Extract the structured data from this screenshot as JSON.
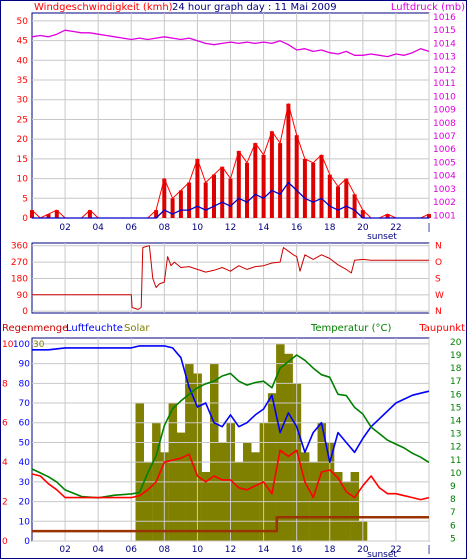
{
  "title": "24 hour graph day : 11 Mai 2009",
  "colors": {
    "wind": "#ff0000",
    "gust_bar": "#dd0000",
    "avg_wind": "#0000cc",
    "pressure": "#e000e0",
    "direction": "#cc0000",
    "humidity": "#0000ff",
    "temperature": "#008000",
    "dewpoint": "#ff0000",
    "solar": "#808000",
    "rain": "#993300",
    "grid": "#c8c8c8",
    "dark": "#000080"
  },
  "sunset_label": "sunset",
  "chart_data": [
    {
      "type": "line",
      "panel": "wind",
      "title": "24 hour graph day : 11 Mai 2009",
      "left_axis_label": "Windgeschwindigkeit (kmh)",
      "right_axis_label": "Luftdruck (mb)",
      "x_ticks": [
        "02",
        "04",
        "06",
        "08",
        "10",
        "12",
        "14",
        "16",
        "18",
        "20",
        "22",
        "|"
      ],
      "left_ticks": [
        0,
        5,
        10,
        15,
        20,
        25,
        30,
        35,
        40,
        45,
        50
      ],
      "right_ticks": [
        1001,
        1002,
        1003,
        1004,
        1005,
        1006,
        1007,
        1008,
        1009,
        1010,
        1011,
        1012,
        1013,
        1014,
        1015,
        1016
      ],
      "x_range": [
        0,
        24
      ],
      "ylim": [
        0,
        52
      ],
      "y2lim": [
        1000.8,
        1016.3
      ],
      "series": [
        {
          "name": "Luftdruck (mb)",
          "axis": "right",
          "color": "pressure",
          "x": [
            0,
            0.5,
            1,
            1.5,
            2,
            2.5,
            3,
            3.5,
            4,
            4.5,
            5,
            5.5,
            6,
            6.5,
            7,
            7.5,
            8,
            8.5,
            9,
            9.5,
            10,
            10.5,
            11,
            11.5,
            12,
            12.5,
            13,
            13.5,
            14,
            14.5,
            15,
            15.5,
            16,
            16.5,
            17,
            17.5,
            18,
            18.5,
            19,
            19.5,
            20,
            20.5,
            21,
            21.5,
            22,
            22.5,
            23,
            23.5,
            24
          ],
          "values": [
            1014.5,
            1014.6,
            1014.5,
            1014.7,
            1015.0,
            1014.9,
            1014.8,
            1014.8,
            1014.7,
            1014.6,
            1014.5,
            1014.4,
            1014.3,
            1014.4,
            1014.3,
            1014.4,
            1014.5,
            1014.4,
            1014.3,
            1014.4,
            1014.2,
            1014.0,
            1013.9,
            1014.0,
            1014.1,
            1014.0,
            1014.1,
            1014.0,
            1014.1,
            1014.0,
            1014.2,
            1013.9,
            1013.5,
            1013.6,
            1013.4,
            1013.5,
            1013.3,
            1013.2,
            1013.4,
            1013.1,
            1013.1,
            1013.2,
            1013.1,
            1013.0,
            1013.2,
            1013.1,
            1013.3,
            1013.6,
            1013.4
          ]
        },
        {
          "name": "Windgeschwindigkeit (kmh)",
          "axis": "left",
          "color": "wind",
          "x": [
            0,
            0.5,
            1,
            1.5,
            2,
            2.5,
            3,
            3.5,
            4,
            4.5,
            5,
            5.5,
            6,
            6.5,
            7,
            7.5,
            8,
            8.5,
            9,
            9.5,
            10,
            10.5,
            11,
            11.5,
            12,
            12.5,
            13,
            13.5,
            14,
            14.5,
            15,
            15.5,
            16,
            16.5,
            17,
            17.5,
            18,
            18.5,
            19,
            19.5,
            20,
            20.5,
            21,
            21.5,
            22,
            22.5,
            23,
            23.5,
            24
          ],
          "values": [
            2,
            0,
            1,
            2,
            0,
            0,
            0,
            2,
            0,
            0,
            0,
            0,
            0,
            0,
            0,
            2,
            10,
            5,
            7,
            9,
            15,
            9,
            11,
            13,
            10,
            17,
            14,
            19,
            16,
            22,
            19,
            29,
            21,
            15,
            14,
            16,
            11,
            8,
            10,
            6,
            2,
            0,
            0,
            1,
            0,
            0,
            0,
            0,
            1
          ]
        },
        {
          "name": "Mittelwind",
          "axis": "left",
          "color": "avg_wind",
          "x": [
            0,
            0.5,
            1,
            1.5,
            2,
            2.5,
            3,
            3.5,
            4,
            4.5,
            5,
            5.5,
            6,
            6.5,
            7,
            7.5,
            8,
            8.5,
            9,
            9.5,
            10,
            10.5,
            11,
            11.5,
            12,
            12.5,
            13,
            13.5,
            14,
            14.5,
            15,
            15.5,
            16,
            16.5,
            17,
            17.5,
            18,
            18.5,
            19,
            19.5,
            20,
            20.5,
            21,
            21.5,
            22,
            22.5,
            23,
            23.5,
            24
          ],
          "values": [
            0,
            0,
            0,
            0,
            0,
            0,
            0,
            0,
            0,
            0,
            0,
            0,
            0,
            0,
            0,
            0,
            2,
            1,
            2,
            2,
            3,
            2,
            3,
            4,
            3,
            5,
            4,
            6,
            5,
            7,
            6,
            9,
            7,
            5,
            4,
            5,
            3,
            2,
            3,
            2,
            0,
            0,
            0,
            0,
            0,
            0,
            0,
            0,
            0
          ]
        }
      ]
    },
    {
      "type": "line",
      "panel": "direction",
      "left_ticks": [
        0,
        90,
        180,
        270,
        360
      ],
      "right_ticks": [
        "N",
        "W",
        "S",
        "O",
        "N"
      ],
      "x_range": [
        0,
        24
      ],
      "ylim": [
        -10,
        375
      ],
      "series": [
        {
          "name": "Windrichtung",
          "color": "direction",
          "x": [
            0,
            6,
            6.05,
            6.4,
            6.5,
            6.6,
            6.7,
            7.1,
            7.3,
            7.5,
            7.7,
            8,
            8.2,
            8.4,
            8.6,
            9,
            9.5,
            10,
            10.5,
            11,
            11.5,
            12,
            12.5,
            13,
            13.5,
            14,
            14.5,
            15,
            15.2,
            15.5,
            15.8,
            16,
            16.2,
            16.5,
            17,
            17.5,
            18,
            18.5,
            19,
            19.3,
            19.5,
            20,
            20.5,
            21,
            22,
            23,
            24
          ],
          "values": [
            90,
            90,
            20,
            10,
            15,
            20,
            350,
            360,
            180,
            130,
            150,
            160,
            300,
            250,
            270,
            240,
            245,
            230,
            215,
            225,
            240,
            220,
            250,
            230,
            245,
            250,
            265,
            270,
            350,
            330,
            310,
            300,
            220,
            310,
            285,
            310,
            290,
            255,
            230,
            210,
            280,
            285,
            280,
            280,
            280,
            280,
            280
          ]
        }
      ]
    },
    {
      "type": "line",
      "panel": "climate",
      "left_axis_label": "Regenmenge",
      "left_axis_label_2": "Luftfeuchte",
      "solar_label": "Solar",
      "right_axis_label": "Temperatur (°C)",
      "right_axis_label_2": "Taupunkt",
      "left_ticks_rain": [
        0,
        2,
        4,
        6,
        8,
        10
      ],
      "left_ticks_hum": [
        0,
        10,
        20,
        30,
        40,
        50,
        60,
        70,
        80,
        90,
        100
      ],
      "left_ticks_solar": [
        30
      ],
      "right_ticks": [
        5,
        6,
        7,
        8,
        9,
        10,
        11,
        12,
        13,
        14,
        15,
        16,
        17,
        18,
        19,
        20
      ],
      "x_range": [
        0,
        24
      ],
      "ylim": [
        0,
        103
      ],
      "y2lim": [
        4.8,
        20.3
      ],
      "series": [
        {
          "name": "Solar",
          "color": "solar",
          "style": "bars",
          "x": [
            6.5,
            7,
            7.5,
            8,
            8.5,
            9,
            9.5,
            10,
            10.5,
            11,
            11.5,
            12,
            12.5,
            13,
            13.5,
            14,
            14.5,
            15,
            15.5,
            16,
            16.5,
            17,
            17.5,
            18,
            18.5,
            19,
            19.5,
            20
          ],
          "values": [
            70,
            40,
            60,
            45,
            70,
            55,
            90,
            85,
            35,
            90,
            50,
            60,
            40,
            50,
            45,
            60,
            75,
            100,
            95,
            80,
            45,
            40,
            60,
            50,
            35,
            30,
            35,
            10
          ]
        },
        {
          "name": "Luftfeuchte",
          "color": "humidity",
          "x": [
            0,
            1,
            2,
            3,
            4,
            5,
            6,
            6.5,
            7,
            7.5,
            8,
            8.5,
            9,
            9.5,
            10,
            10.5,
            11,
            11.5,
            12,
            12.5,
            13,
            13.5,
            14,
            14.5,
            15,
            15.5,
            16,
            16.5,
            17,
            17.5,
            18,
            18.5,
            19,
            19.5,
            20,
            20.5,
            21,
            21.5,
            22,
            22.5,
            23,
            23.5,
            24
          ],
          "values": [
            97,
            97,
            98,
            98,
            98,
            98,
            98,
            99,
            99,
            99,
            99,
            98,
            93,
            78,
            68,
            70,
            60,
            58,
            64,
            58,
            60,
            64,
            67,
            74,
            55,
            65,
            58,
            45,
            55,
            60,
            40,
            55,
            50,
            45,
            52,
            58,
            62,
            66,
            70,
            72,
            74,
            75,
            76
          ]
        },
        {
          "name": "Temperatur (°C)",
          "color": "temperature",
          "axis": "right",
          "x": [
            0,
            0.5,
            1,
            1.5,
            2,
            3,
            4,
            5,
            6,
            6.5,
            7,
            7.5,
            8,
            8.5,
            9,
            9.5,
            10,
            10.5,
            11,
            11.5,
            12,
            12.5,
            13,
            13.5,
            14,
            14.5,
            15,
            15.5,
            16,
            16.5,
            17,
            17.5,
            18,
            18.5,
            19,
            19.5,
            20,
            20.5,
            21,
            21.5,
            22,
            22.5,
            23,
            23.5,
            24
          ],
          "values": [
            10.3,
            10.0,
            9.7,
            9.3,
            8.7,
            8.2,
            8.1,
            8.3,
            8.4,
            8.5,
            10.0,
            11.3,
            13.6,
            14.9,
            15.5,
            16.0,
            16.5,
            16.8,
            17.0,
            17.4,
            17.6,
            17.0,
            16.7,
            16.9,
            17.0,
            16.5,
            18.0,
            18.5,
            19.0,
            18.6,
            18.0,
            17.5,
            17.3,
            16.0,
            15.9,
            15.0,
            14.5,
            13.5,
            13.0,
            12.5,
            12.2,
            11.9,
            11.5,
            11.2,
            10.8
          ]
        },
        {
          "name": "Taupunkt",
          "color": "dewpoint",
          "x": [
            0,
            0.5,
            1,
            1.5,
            2,
            3,
            4,
            5,
            6,
            6.5,
            7,
            7.5,
            8,
            8.5,
            9,
            9.5,
            10,
            10.5,
            11,
            11.5,
            12,
            12.5,
            13,
            13.5,
            14,
            14.5,
            15,
            15.5,
            16,
            16.5,
            17,
            17.5,
            18,
            18.5,
            19,
            19.5,
            20,
            20.5,
            21,
            21.5,
            22,
            22.5,
            23,
            23.5,
            24
          ],
          "values": [
            34,
            33,
            29,
            26,
            22,
            22,
            22,
            22,
            22,
            23,
            26,
            30,
            40,
            41,
            42,
            44,
            33,
            30,
            33,
            31,
            31,
            27,
            26,
            28,
            30,
            24,
            46,
            43,
            46,
            30,
            22,
            35,
            36,
            32,
            25,
            22,
            28,
            33,
            27,
            24,
            24,
            23,
            22,
            21,
            22
          ]
        },
        {
          "name": "Regenmenge",
          "color": "rain",
          "style": "step",
          "x": [
            0,
            14.5,
            14.8,
            24
          ],
          "values": [
            0.5,
            0.5,
            1.2,
            1.2
          ]
        }
      ]
    }
  ]
}
